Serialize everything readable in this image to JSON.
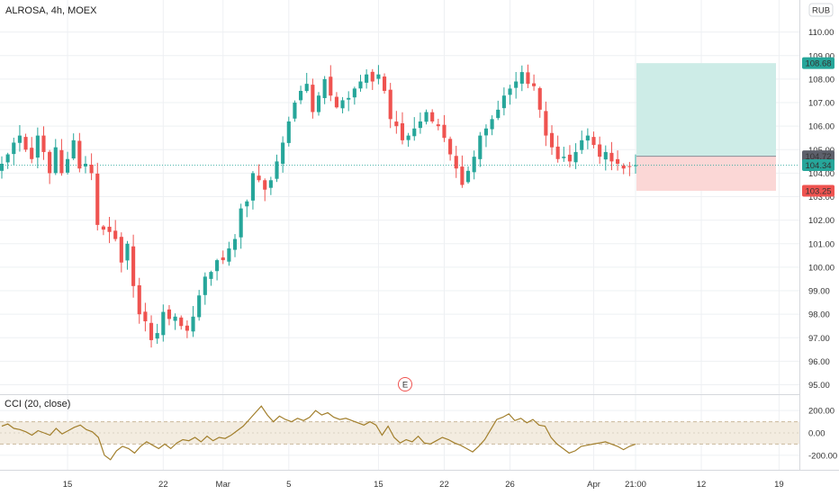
{
  "header": {
    "title": "ALROSA, 4h, MOEX",
    "currency": "RUB"
  },
  "colors": {
    "up": "#26a69a",
    "down": "#ef5350",
    "grid": "#eef0f3",
    "cci_line": "#a27f2c",
    "cci_band": "#f3ece0",
    "profit_zone": "#cdece7",
    "loss_zone": "#fbd7d6",
    "current_price_tag": "#26a69a",
    "entry_tag": "#5d606b",
    "target_tag": "#26a69a",
    "stop_tag": "#ef5350",
    "earnings_marker": "#ef5350"
  },
  "price_axis": {
    "ticks": [
      "110.00",
      "109.00",
      "108.00",
      "107.00",
      "106.00",
      "105.00",
      "104.00",
      "103.00",
      "102.00",
      "101.00",
      "100.00",
      "99.00",
      "98.00",
      "97.00",
      "96.00",
      "95.00"
    ],
    "markers": {
      "target": "108.68",
      "entry": "104.72",
      "current": "104.34",
      "stop": "103.25"
    }
  },
  "time_axis": {
    "labels": [
      "15",
      "22",
      "Mar",
      "5",
      "15",
      "22",
      "26",
      "Apr",
      "21:00",
      "12",
      "19"
    ]
  },
  "earnings_marker": "E",
  "indicator": {
    "label": "CCI (20, close)",
    "ticks": [
      "200.00",
      "0.00",
      "-200.00"
    ],
    "band": [
      -100,
      100
    ]
  },
  "chart_data": [
    {
      "type": "candlestick",
      "title": "ALROSA, 4h, MOEX",
      "ylim": [
        94.6,
        110.6
      ],
      "series": [
        {
          "name": "ALROSA",
          "close": [
            104.4,
            104.8,
            105.3,
            105.6,
            105.0,
            104.6,
            105.6,
            104.9,
            104.0,
            105.1,
            104.0,
            104.6,
            105.4,
            104.2,
            104.4,
            104.0,
            101.8,
            101.6,
            101.5,
            101.2,
            100.2,
            101.0,
            99.2,
            98.0,
            97.7,
            96.9,
            97.2,
            98.1,
            97.8,
            97.9,
            97.5,
            97.3,
            97.9,
            98.8,
            99.6,
            99.8,
            100.3,
            100.3,
            100.8,
            101.2,
            102.5,
            102.8,
            104.0,
            103.7,
            103.3,
            103.7,
            104.5,
            105.3,
            106.2,
            107.0,
            107.5,
            107.8,
            106.6,
            107.3,
            108.0,
            107.3,
            106.8,
            107.1,
            107.2,
            107.6,
            107.9,
            108.2,
            107.9,
            108.2,
            107.5,
            106.3,
            106.0,
            105.4,
            105.6,
            105.9,
            106.2,
            106.6,
            106.2,
            106.0,
            105.5,
            104.8,
            104.2,
            103.5,
            104.1,
            104.7,
            105.6,
            105.9,
            106.3,
            106.7,
            107.3,
            107.6,
            107.9,
            108.3,
            107.8,
            107.7,
            106.7,
            105.6,
            105.1,
            104.6,
            104.7,
            104.5,
            104.9,
            105.4,
            105.6,
            105.2,
            104.7,
            104.9,
            104.5,
            104.4,
            104.2,
            104.3,
            104.34
          ],
          "x_labels": {
            "15": 11,
            "22": 27,
            "Mar": 37,
            "5": 48,
            "15b": 63,
            "22b": 74,
            "26": 85,
            "Apr": 99,
            "21:00": 106,
            "12": 117,
            "19": 130
          }
        }
      ]
    },
    {
      "type": "line",
      "title": "CCI (20, close)",
      "ylim": [
        -330,
        330
      ],
      "series": [
        {
          "name": "CCI",
          "values": [
            60,
            80,
            40,
            30,
            10,
            -20,
            20,
            0,
            -20,
            40,
            -10,
            20,
            50,
            70,
            30,
            10,
            -40,
            -200,
            -240,
            -160,
            -120,
            -140,
            -180,
            -120,
            -80,
            -110,
            -140,
            -100,
            -140,
            -90,
            -60,
            -70,
            -40,
            -80,
            -30,
            -70,
            -40,
            -50,
            -20,
            20,
            60,
            120,
            180,
            240,
            160,
            100,
            150,
            120,
            100,
            130,
            110,
            140,
            200,
            160,
            180,
            140,
            120,
            130,
            110,
            90,
            70,
            100,
            70,
            -20,
            60,
            -40,
            -90,
            -60,
            -80,
            -30,
            -90,
            -100,
            -70,
            -40,
            -60,
            -90,
            -110,
            -140,
            -170,
            -120,
            -60,
            30,
            120,
            140,
            170,
            110,
            130,
            90,
            120,
            70,
            60,
            -40,
            -100,
            -140,
            -180,
            -160,
            -120,
            -110,
            -100,
            -90,
            -80,
            -100,
            -120,
            -150,
            -120,
            -100
          ],
          "x_start": 0
        }
      ]
    }
  ]
}
